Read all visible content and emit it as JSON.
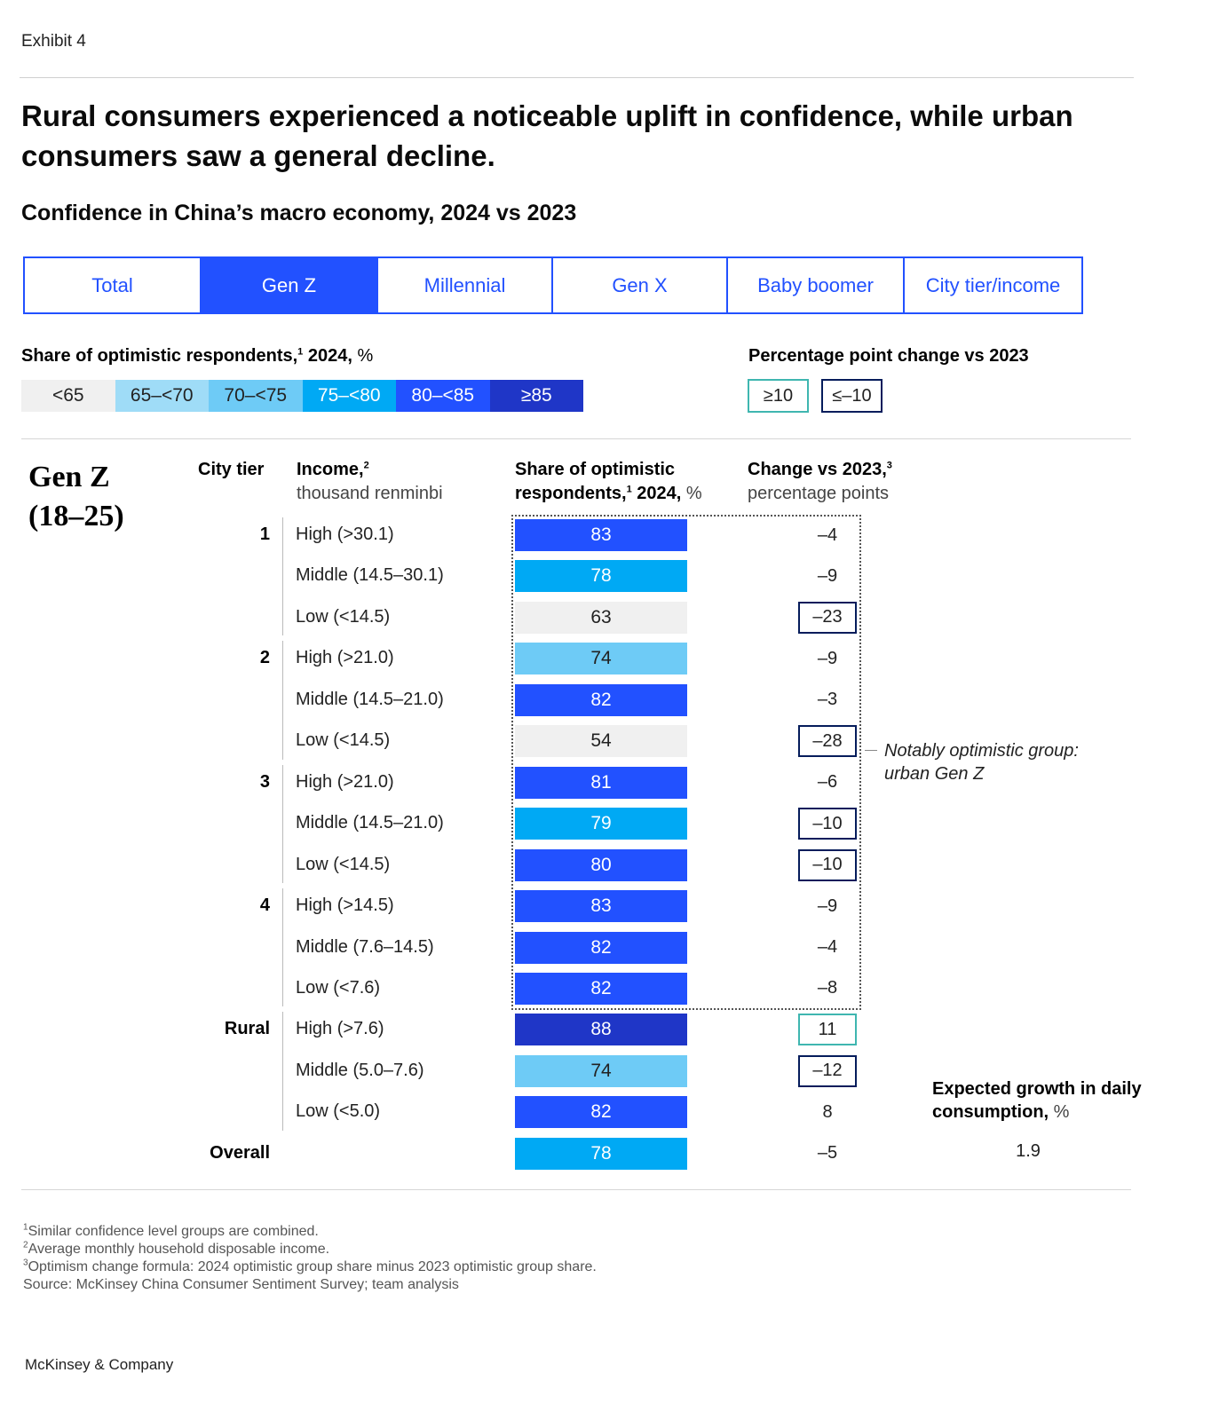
{
  "header": {
    "exhibit": "Exhibit 4",
    "title": "Rural consumers experienced a noticeable uplift in confidence, while urban consumers saw a general decline.",
    "subtitle": "Confidence in China’s macro economy, 2024 vs 2023"
  },
  "tabs": [
    {
      "label": "Total",
      "active": false
    },
    {
      "label": "Gen Z",
      "active": true
    },
    {
      "label": "Millennial",
      "active": false
    },
    {
      "label": "Gen X",
      "active": false
    },
    {
      "label": "Baby boomer",
      "active": false
    },
    {
      "label": "City tier/income",
      "active": false
    }
  ],
  "legend": {
    "share_title": "Share of optimistic respondents,",
    "share_sup": "1",
    "share_tail": " 2024,",
    "share_unit": " %",
    "change_title": "Percentage point change vs 2023",
    "bins": [
      {
        "label": "<65",
        "color": "#f0f0f0",
        "text_color": "#222222"
      },
      {
        "label": "65–<70",
        "color": "#9fdcf7",
        "text_color": "#222222"
      },
      {
        "label": "70–<75",
        "color": "#6ecbf6",
        "text_color": "#222222"
      },
      {
        "label": "75–<80",
        "color": "#00a9f4",
        "text_color": "#ffffff"
      },
      {
        "label": "80–<85",
        "color": "#2251ff",
        "text_color": "#ffffff"
      },
      {
        "label": "≥85",
        "color": "#1f36c7",
        "text_color": "#ffffff"
      }
    ],
    "change_positive": {
      "label": "≥10",
      "color": "#3fb6b0"
    },
    "change_negative": {
      "label": "≤–10",
      "color": "#051c5b"
    }
  },
  "chart_data": {
    "type": "table",
    "group_label": "Gen Z",
    "group_range": "(18–25)",
    "columns": {
      "city_tier": "City tier",
      "income": "Income,",
      "income_sup": "2",
      "income_sub": "thousand renminbi",
      "share_line1": "Share of optimistic",
      "share_line2": "respondents,",
      "share_sup": "1",
      "share_tail": " 2024,",
      "share_unit": " %",
      "change": "Change vs 2023,",
      "change_sup": "3",
      "change_sub": "percentage points"
    },
    "groups": [
      {
        "tier": "1",
        "rows": [
          {
            "income": "High (>30.1)",
            "share": 83,
            "change": "–4",
            "change_value": -4
          },
          {
            "income": "Middle (14.5–30.1)",
            "share": 78,
            "change": "–9",
            "change_value": -9
          },
          {
            "income": "Low (<14.5)",
            "share": 63,
            "change": "–23",
            "change_value": -23
          }
        ]
      },
      {
        "tier": "2",
        "rows": [
          {
            "income": "High (>21.0)",
            "share": 74,
            "change": "–9",
            "change_value": -9
          },
          {
            "income": "Middle (14.5–21.0)",
            "share": 82,
            "change": "–3",
            "change_value": -3
          },
          {
            "income": "Low (<14.5)",
            "share": 54,
            "change": "–28",
            "change_value": -28
          }
        ]
      },
      {
        "tier": "3",
        "rows": [
          {
            "income": "High (>21.0)",
            "share": 81,
            "change": "–6",
            "change_value": -6
          },
          {
            "income": "Middle (14.5–21.0)",
            "share": 79,
            "change": "–10",
            "change_value": -10
          },
          {
            "income": "Low (<14.5)",
            "share": 80,
            "change": "–10",
            "change_value": -10
          }
        ]
      },
      {
        "tier": "4",
        "rows": [
          {
            "income": "High (>14.5)",
            "share": 83,
            "change": "–9",
            "change_value": -9
          },
          {
            "income": "Middle (7.6–14.5)",
            "share": 82,
            "change": "–4",
            "change_value": -4
          },
          {
            "income": "Low (<7.6)",
            "share": 82,
            "change": "–8",
            "change_value": -8
          }
        ]
      },
      {
        "tier": "Rural",
        "rows": [
          {
            "income": "High (>7.6)",
            "share": 88,
            "change": "11",
            "change_value": 11
          },
          {
            "income": "Middle (5.0–7.6)",
            "share": 74,
            "change": "–12",
            "change_value": -12
          },
          {
            "income": "Low (<5.0)",
            "share": 82,
            "change": "8",
            "change_value": 8
          }
        ]
      }
    ],
    "overall": {
      "label": "Overall",
      "share": 78,
      "change": "–5",
      "change_value": -5
    },
    "annotation": "Notably optimistic group: urban Gen Z",
    "expected_growth": {
      "title": "Expected growth in daily consumption,",
      "unit": " %",
      "value": "1.9"
    }
  },
  "footnotes": [
    {
      "sup": "1",
      "text": "Similar confidence level groups are combined."
    },
    {
      "sup": "2",
      "text": "Average monthly household disposable income."
    },
    {
      "sup": "3",
      "text": "Optimism change formula: 2024 optimistic group share minus 2023 optimistic group share."
    },
    {
      "sup": "",
      "text": " Source: McKinsey China Consumer Sentiment Survey; team analysis"
    }
  ],
  "brand": "McKinsey & Company"
}
